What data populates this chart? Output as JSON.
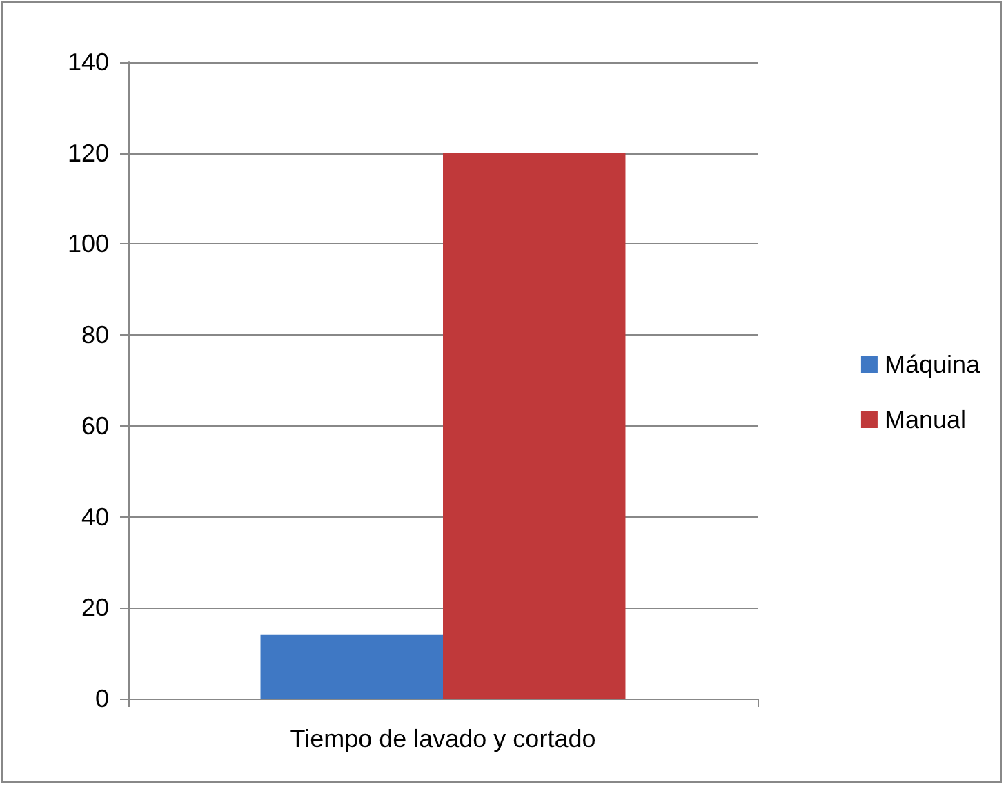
{
  "chart_data": {
    "type": "bar",
    "categories": [
      "Tiempo de lavado y cortado"
    ],
    "series": [
      {
        "name": "Máquina",
        "color": "#3f78c4",
        "values": [
          14
        ]
      },
      {
        "name": "Manual",
        "color": "#c0393a",
        "values": [
          120
        ]
      }
    ],
    "ylim": [
      0,
      140
    ],
    "yticks": [
      0,
      20,
      40,
      60,
      80,
      100,
      120,
      140
    ],
    "grid": "y",
    "legend": "right"
  }
}
